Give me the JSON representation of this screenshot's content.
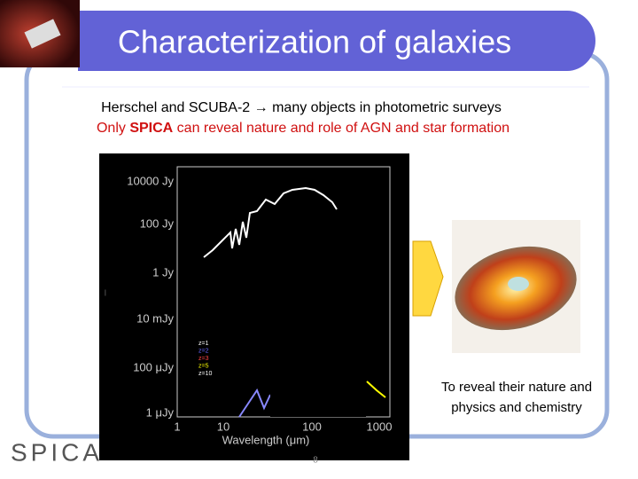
{
  "header": {
    "title": "Characterization of galaxies"
  },
  "body": {
    "line1": "Herschel and SCUBA-2 → many objects in  photometric surveys",
    "line2": [
      "Only ",
      "SPICA",
      " can reveal nature and role of AGN and star formation"
    ]
  },
  "figure": {
    "y_labels": [
      "10000 Jy",
      "100 Jy",
      "1 Jy",
      "10 mJy",
      "100 μJy",
      "1 μJy"
    ],
    "x_labels": [
      "1",
      "10",
      "100",
      "1000"
    ],
    "x_axis_label": "Wavelength (μm)",
    "legend": [
      "z=1",
      "z=2",
      "z=3",
      "z=5",
      "z=10"
    ]
  },
  "caption": [
    "To reveal their nature and",
    "physics and chemistry"
  ],
  "footer": {
    "logo": "SPICA",
    "page_number": "8"
  }
}
